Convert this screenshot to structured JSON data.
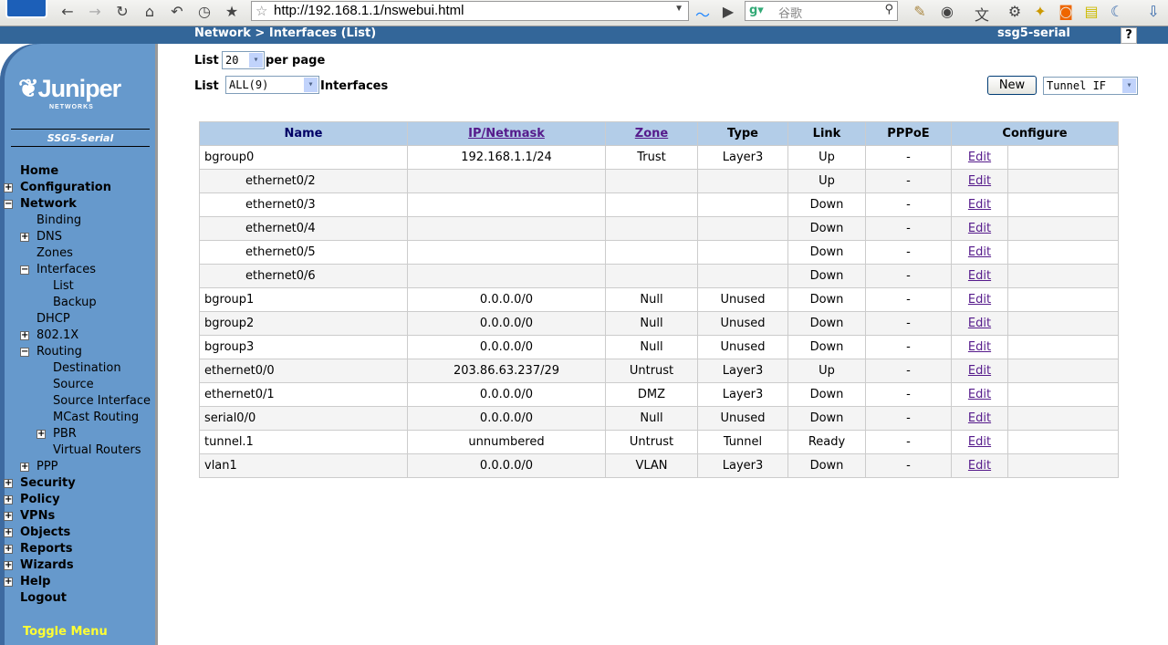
{
  "browser": {
    "url": "http://192.168.1.1/nswebui.html",
    "search_placeholder": "谷歌",
    "icons": [
      "back-icon",
      "forward-icon",
      "reload-icon",
      "home-icon",
      "undo-icon",
      "history-icon",
      "bookmark-star-icon"
    ]
  },
  "topbar": {
    "breadcrumb": "Network > Interfaces (List)",
    "device": "ssg5-serial",
    "help": "?"
  },
  "sidebar": {
    "brand": "Juniper",
    "brand_sub": "NETWORKS",
    "model": "SSG5-Serial",
    "toggle_menu": "Toggle Menu",
    "items": [
      {
        "label": "Home",
        "level": 0,
        "toggle": ""
      },
      {
        "label": "Configuration",
        "level": 0,
        "toggle": "+"
      },
      {
        "label": "Network",
        "level": 0,
        "toggle": "-"
      },
      {
        "label": "Binding",
        "level": 1,
        "toggle": ""
      },
      {
        "label": "DNS",
        "level": 1,
        "toggle": "+"
      },
      {
        "label": "Zones",
        "level": 1,
        "toggle": ""
      },
      {
        "label": "Interfaces",
        "level": 1,
        "toggle": "-"
      },
      {
        "label": "List",
        "level": 2,
        "toggle": ""
      },
      {
        "label": "Backup",
        "level": 2,
        "toggle": ""
      },
      {
        "label": "DHCP",
        "level": 1,
        "toggle": ""
      },
      {
        "label": "802.1X",
        "level": 1,
        "toggle": "+"
      },
      {
        "label": "Routing",
        "level": 1,
        "toggle": "-"
      },
      {
        "label": "Destination",
        "level": 2,
        "toggle": ""
      },
      {
        "label": "Source",
        "level": 2,
        "toggle": ""
      },
      {
        "label": "Source Interface",
        "level": 2,
        "toggle": ""
      },
      {
        "label": "MCast Routing",
        "level": 2,
        "toggle": ""
      },
      {
        "label": "PBR",
        "level": 2,
        "toggle": "+"
      },
      {
        "label": "Virtual Routers",
        "level": 2,
        "toggle": ""
      },
      {
        "label": "PPP",
        "level": 1,
        "toggle": "+"
      },
      {
        "label": "Security",
        "level": 0,
        "toggle": "+"
      },
      {
        "label": "Policy",
        "level": 0,
        "toggle": "+"
      },
      {
        "label": "VPNs",
        "level": 0,
        "toggle": "+"
      },
      {
        "label": "Objects",
        "level": 0,
        "toggle": "+"
      },
      {
        "label": "Reports",
        "level": 0,
        "toggle": "+"
      },
      {
        "label": "Wizards",
        "level": 0,
        "toggle": "+"
      },
      {
        "label": "Help",
        "level": 0,
        "toggle": "+"
      },
      {
        "label": "Logout",
        "level": 0,
        "toggle": ""
      }
    ]
  },
  "controls": {
    "list_label": "List",
    "per_page_value": "20",
    "per_page_label": "per page",
    "filter_value": "ALL(9)",
    "interfaces_label": "Interfaces",
    "new_button": "New",
    "new_type": "Tunnel IF"
  },
  "table": {
    "headers": [
      "Name",
      "IP/Netmask",
      "Zone",
      "Type",
      "Link",
      "PPPoE",
      "Configure"
    ],
    "rows": [
      {
        "name": "bgroup0",
        "sub": false,
        "ip": "192.168.1.1/24",
        "zone": "Trust",
        "type": "Layer3",
        "link": "Up",
        "pppoe": "-",
        "edit": "Edit"
      },
      {
        "name": "ethernet0/2",
        "sub": true,
        "ip": "",
        "zone": "",
        "type": "",
        "link": "Up",
        "pppoe": "-",
        "edit": "Edit"
      },
      {
        "name": "ethernet0/3",
        "sub": true,
        "ip": "",
        "zone": "",
        "type": "",
        "link": "Down",
        "pppoe": "-",
        "edit": "Edit"
      },
      {
        "name": "ethernet0/4",
        "sub": true,
        "ip": "",
        "zone": "",
        "type": "",
        "link": "Down",
        "pppoe": "-",
        "edit": "Edit"
      },
      {
        "name": "ethernet0/5",
        "sub": true,
        "ip": "",
        "zone": "",
        "type": "",
        "link": "Down",
        "pppoe": "-",
        "edit": "Edit"
      },
      {
        "name": "ethernet0/6",
        "sub": true,
        "ip": "",
        "zone": "",
        "type": "",
        "link": "Down",
        "pppoe": "-",
        "edit": "Edit"
      },
      {
        "name": "bgroup1",
        "sub": false,
        "ip": "0.0.0.0/0",
        "zone": "Null",
        "type": "Unused",
        "link": "Down",
        "pppoe": "-",
        "edit": "Edit"
      },
      {
        "name": "bgroup2",
        "sub": false,
        "ip": "0.0.0.0/0",
        "zone": "Null",
        "type": "Unused",
        "link": "Down",
        "pppoe": "-",
        "edit": "Edit"
      },
      {
        "name": "bgroup3",
        "sub": false,
        "ip": "0.0.0.0/0",
        "zone": "Null",
        "type": "Unused",
        "link": "Down",
        "pppoe": "-",
        "edit": "Edit"
      },
      {
        "name": "ethernet0/0",
        "sub": false,
        "ip": "203.86.63.237/29",
        "zone": "Untrust",
        "type": "Layer3",
        "link": "Up",
        "pppoe": "-",
        "edit": "Edit"
      },
      {
        "name": "ethernet0/1",
        "sub": false,
        "ip": "0.0.0.0/0",
        "zone": "DMZ",
        "type": "Layer3",
        "link": "Down",
        "pppoe": "-",
        "edit": "Edit"
      },
      {
        "name": "serial0/0",
        "sub": false,
        "ip": "0.0.0.0/0",
        "zone": "Null",
        "type": "Unused",
        "link": "Down",
        "pppoe": "-",
        "edit": "Edit"
      },
      {
        "name": "tunnel.1",
        "sub": false,
        "ip": "unnumbered",
        "zone": "Untrust",
        "type": "Tunnel",
        "link": "Ready",
        "pppoe": "-",
        "edit": "Edit"
      },
      {
        "name": "vlan1",
        "sub": false,
        "ip": "0.0.0.0/0",
        "zone": "VLAN",
        "type": "Layer3",
        "link": "Down",
        "pppoe": "-",
        "edit": "Edit"
      }
    ]
  },
  "colors": {
    "topbar": "#336699",
    "sidebar": "#6699cc",
    "header": "#b3cde8",
    "toggle": "#ffff33"
  }
}
